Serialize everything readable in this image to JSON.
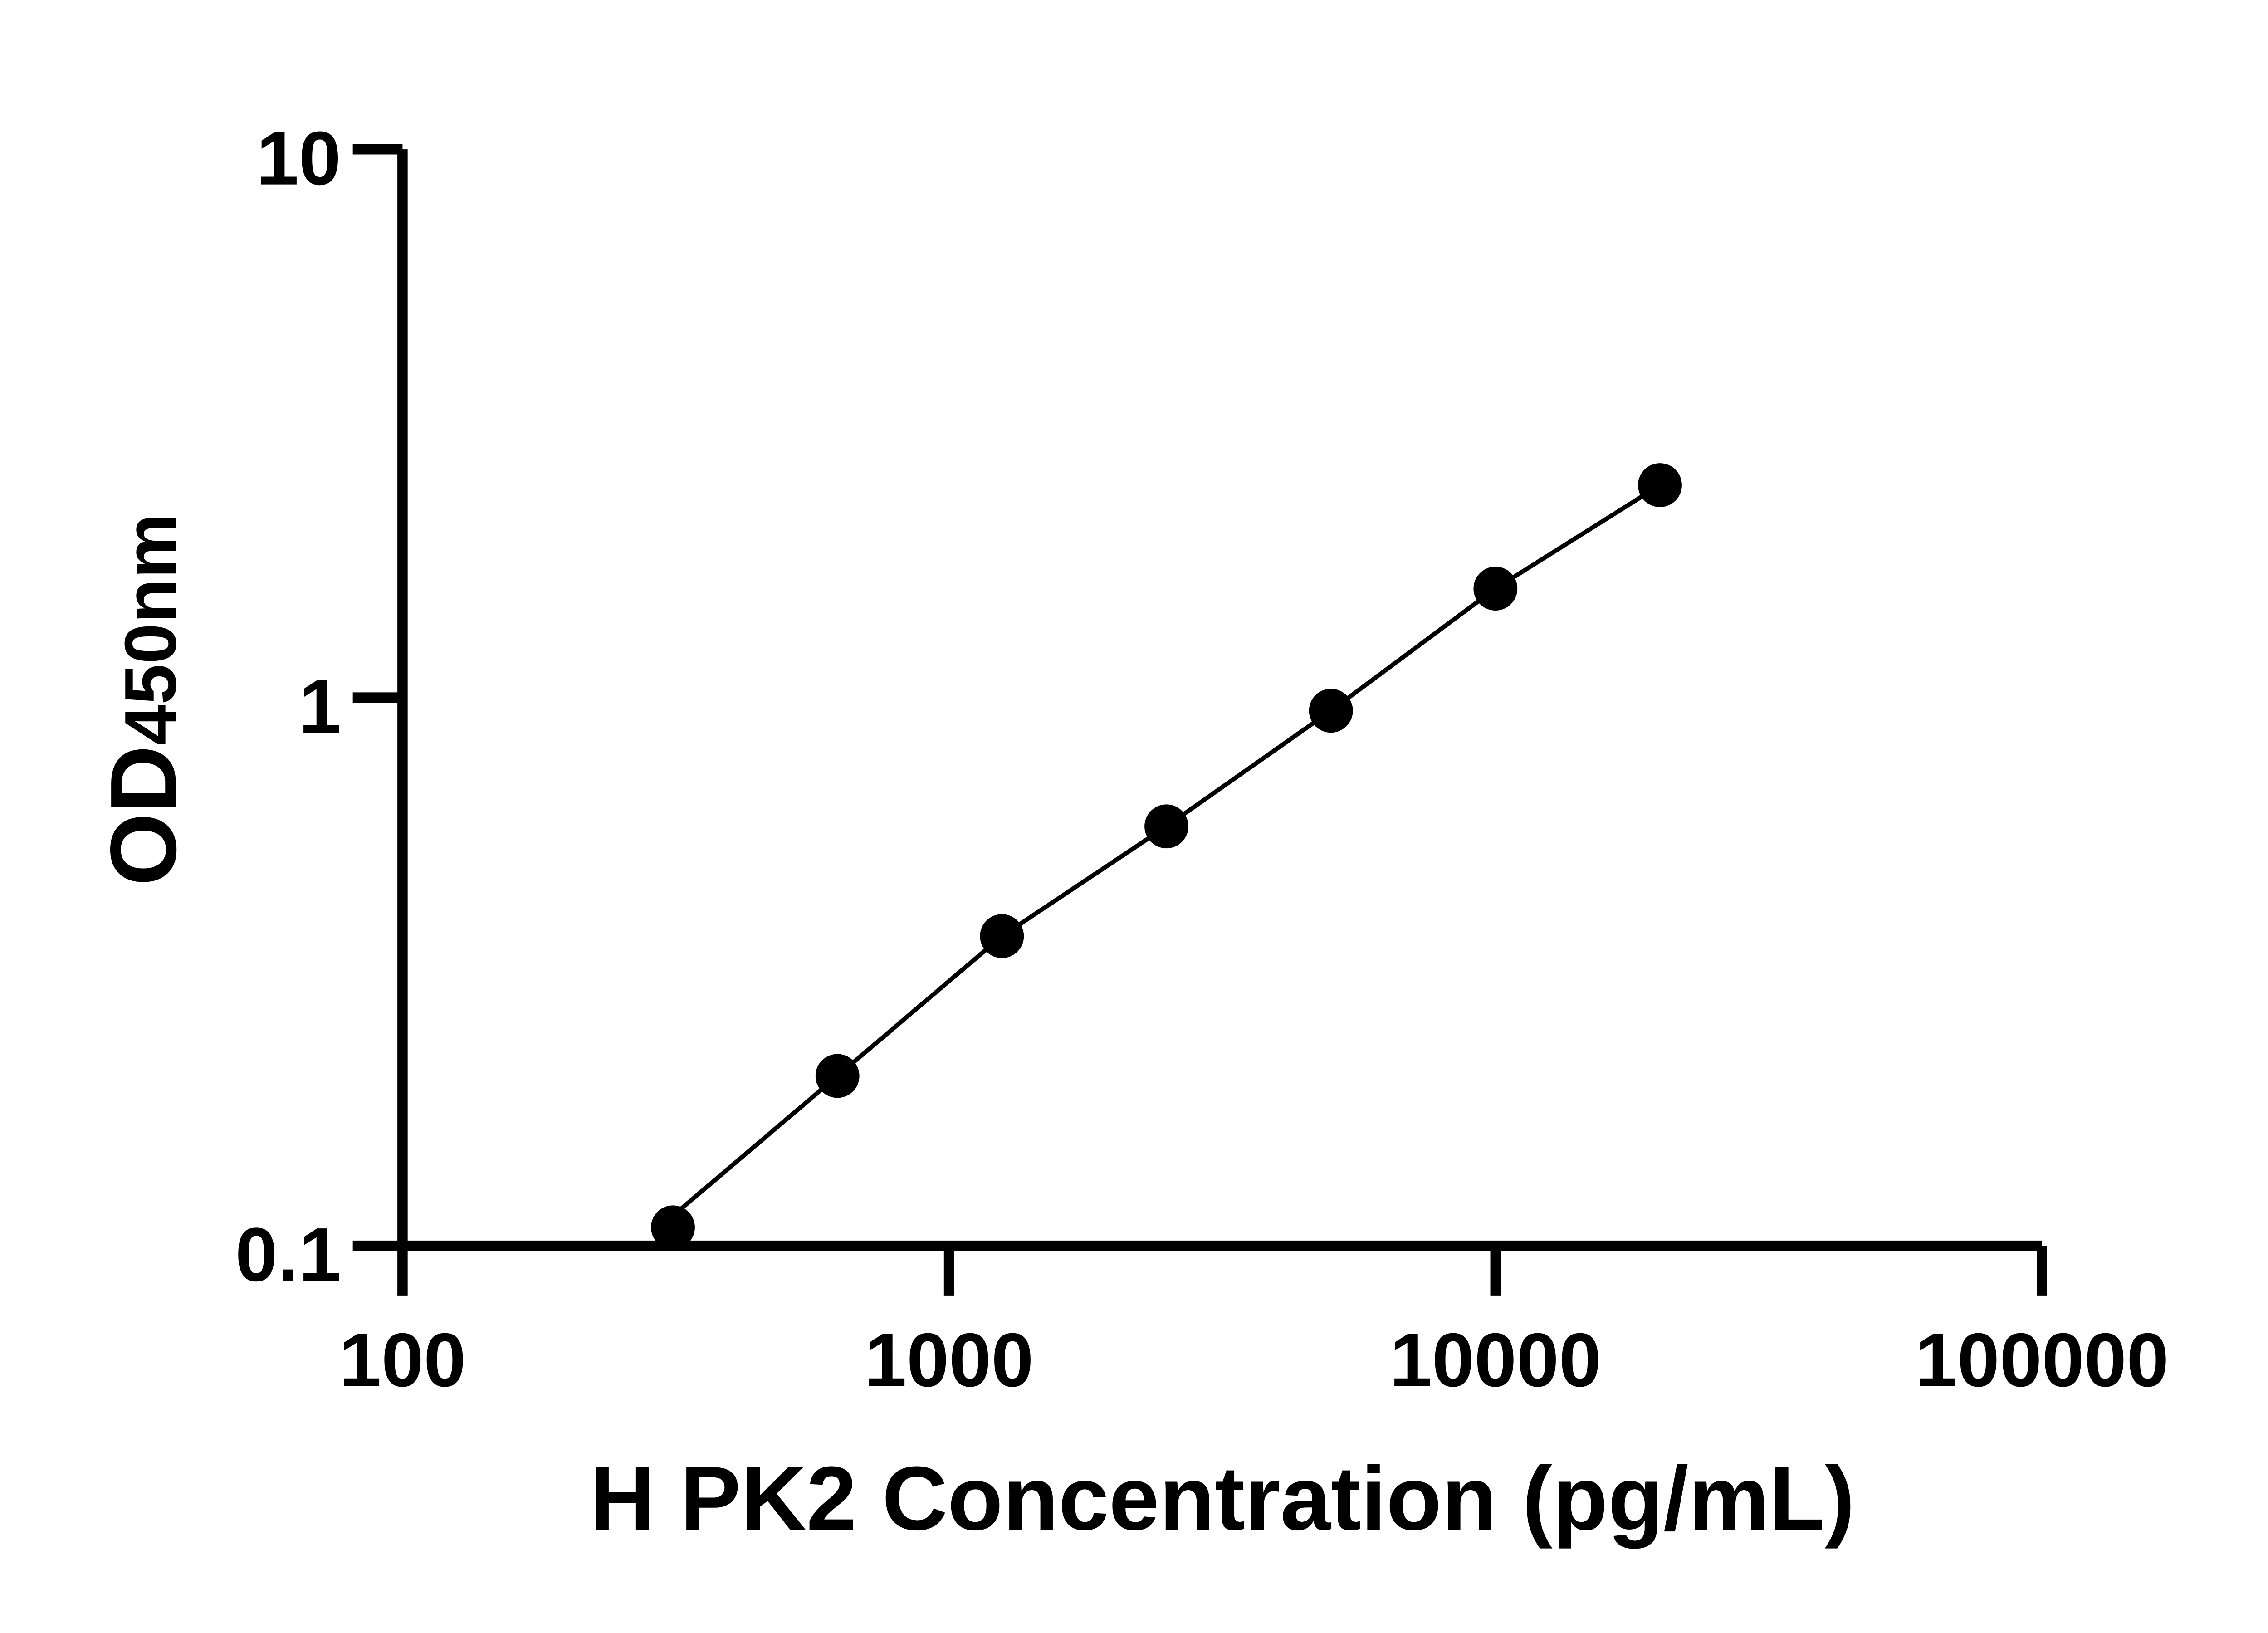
{
  "chart_data": {
    "type": "scatter",
    "title": "",
    "xlabel": "H PK2 Concentration (pg/mL)",
    "ylabel_main": "OD",
    "ylabel_sub": "450nm",
    "x_scale": "log",
    "y_scale": "log",
    "xlim": [
      100,
      100000
    ],
    "ylim": [
      0.1,
      10
    ],
    "x_ticks": [
      "100",
      "1000",
      "10000",
      "100000"
    ],
    "y_ticks": [
      "0.1",
      "1",
      "10"
    ],
    "grid": false,
    "legend": "none",
    "series": [
      {
        "x": [
          312.5,
          625,
          1250,
          2500,
          5000,
          10000,
          20000
        ],
        "y": [
          0.108,
          0.204,
          0.367,
          0.582,
          0.946,
          1.58,
          2.44
        ],
        "marker": "filled-circle",
        "color": "#000000",
        "fit_line": true
      }
    ]
  }
}
